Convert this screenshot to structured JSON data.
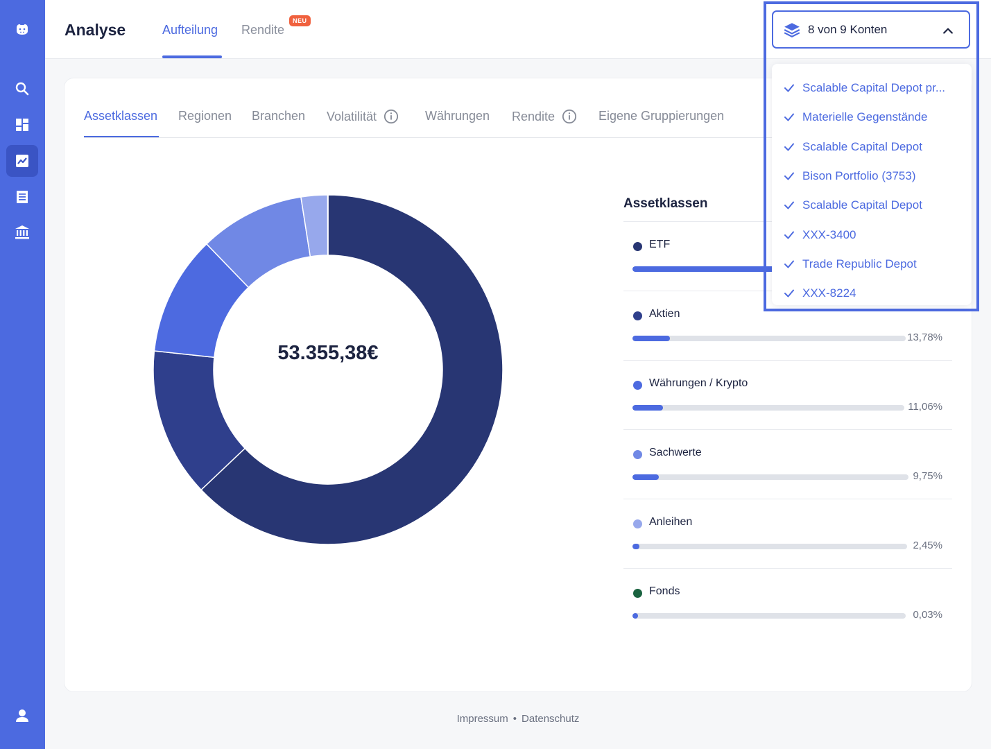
{
  "header": {
    "title": "Analyse",
    "tabs": [
      {
        "label": "Aufteilung",
        "active": true
      },
      {
        "label": "Rendite",
        "active": false,
        "badge": "NEU"
      }
    ]
  },
  "sidebar": {
    "items": [
      {
        "icon": "hippo-logo-icon"
      },
      {
        "icon": "search-icon"
      },
      {
        "icon": "dashboard-icon"
      },
      {
        "icon": "chart-icon",
        "active": true
      },
      {
        "icon": "transactions-icon"
      },
      {
        "icon": "bank-icon"
      },
      {
        "icon": "user-icon"
      }
    ]
  },
  "account_selector": {
    "label": "8 von 9 Konten",
    "accounts": [
      {
        "name": "Scalable Capital Depot pr...",
        "checked": true
      },
      {
        "name": "Materielle Gegenstände",
        "checked": true
      },
      {
        "name": "Scalable Capital Depot",
        "checked": true
      },
      {
        "name": "Bison Portfolio (3753)",
        "checked": true
      },
      {
        "name": "Scalable Capital Depot",
        "checked": true
      },
      {
        "name": "XXX-3400",
        "checked": true
      },
      {
        "name": "Trade Republic Depot",
        "checked": true
      },
      {
        "name": "XXX-8224",
        "checked": true
      }
    ]
  },
  "sub_tabs": [
    {
      "label": "Assetklassen",
      "active": true
    },
    {
      "label": "Regionen"
    },
    {
      "label": "Branchen"
    },
    {
      "label": "Volatilität",
      "info": true
    },
    {
      "label": "Währungen"
    },
    {
      "label": "Rendite",
      "info": true
    },
    {
      "label": "Eigene Gruppierungen"
    }
  ],
  "total": "53.355,38€",
  "legend": {
    "title": "Assetklassen",
    "items": [
      {
        "label": "ETF",
        "pct": "",
        "value": 0.6293,
        "color": "#283673"
      },
      {
        "label": "Aktien",
        "pct": "13,78%",
        "value": 0.1378,
        "color": "#2f3f8c"
      },
      {
        "label": "Währungen / Krypto",
        "pct": "11,06%",
        "value": 0.1106,
        "color": "#4d6ae0"
      },
      {
        "label": "Sachwerte",
        "pct": "9,75%",
        "value": 0.0975,
        "color": "#7088e5"
      },
      {
        "label": "Anleihen",
        "pct": "2,45%",
        "value": 0.0245,
        "color": "#97a8ec"
      },
      {
        "label": "Fonds",
        "pct": "0,03%",
        "value": 0.0003,
        "color": "#1a6340"
      }
    ]
  },
  "chart_data": {
    "type": "pie",
    "categories": [
      "ETF",
      "Aktien",
      "Währungen / Krypto",
      "Sachwerte",
      "Anleihen",
      "Fonds"
    ],
    "values": [
      62.93,
      13.78,
      11.06,
      9.75,
      2.45,
      0.03
    ],
    "colors": [
      "#283673",
      "#2f3f8c",
      "#4d6ae0",
      "#7088e5",
      "#97a8ec",
      "#1a6340"
    ],
    "title": "Assetklassen"
  },
  "footer": {
    "links": [
      "Impressum",
      "Datenschutz"
    ],
    "separator": "•"
  }
}
